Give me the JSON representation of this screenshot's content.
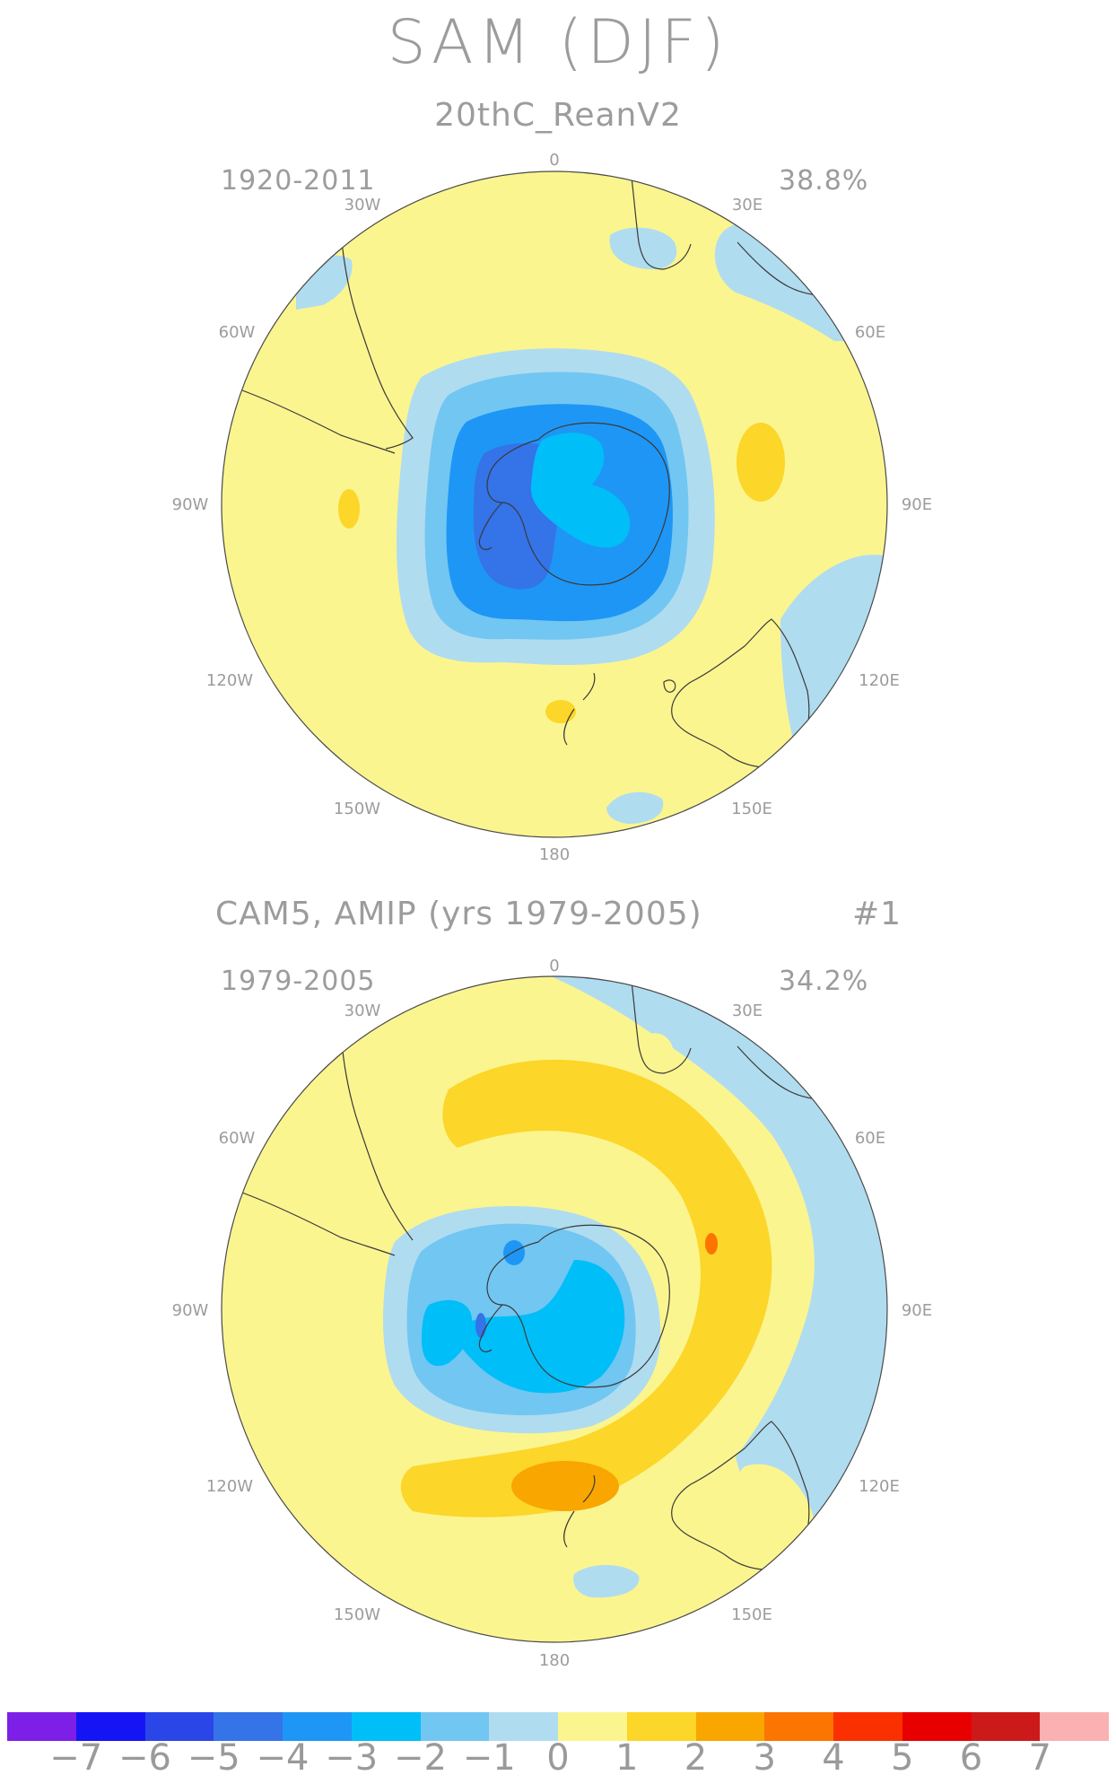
{
  "figure_title": "SAM (DJF)",
  "panels": [
    {
      "title": "20thC_ReanV2",
      "period": "1920-2011",
      "variance": "38.8%",
      "run_label": ""
    },
    {
      "title": "CAM5, AMIP (yrs 1979-2005)",
      "period": "1979-2005",
      "variance": "34.2%",
      "run_label": "#1"
    }
  ],
  "longitude_labels": [
    "0",
    "30E",
    "60E",
    "90E",
    "120E",
    "150E",
    "180",
    "150W",
    "120W",
    "90W",
    "60W",
    "30W"
  ],
  "colorbar": {
    "colors": [
      "#7d1fe6",
      "#1414f5",
      "#2a46e8",
      "#3473e8",
      "#1e96f5",
      "#00bef8",
      "#72c6f2",
      "#b0dcf0",
      "#fbf590",
      "#fcd628",
      "#f9a600",
      "#fb7500",
      "#fb3000",
      "#e80000",
      "#cc1a1a",
      "#fbb1b1"
    ],
    "tick_labels": [
      "−7",
      "−6",
      "−5",
      "−4",
      "−3",
      "−2",
      "−1",
      "0",
      "1",
      "2",
      "3",
      "4",
      "5",
      "6",
      "7"
    ]
  },
  "map_colors": {
    "ocean_base": "#fbf590",
    "coast": "#3a3a3a",
    "border": "#4a4a4a"
  }
}
